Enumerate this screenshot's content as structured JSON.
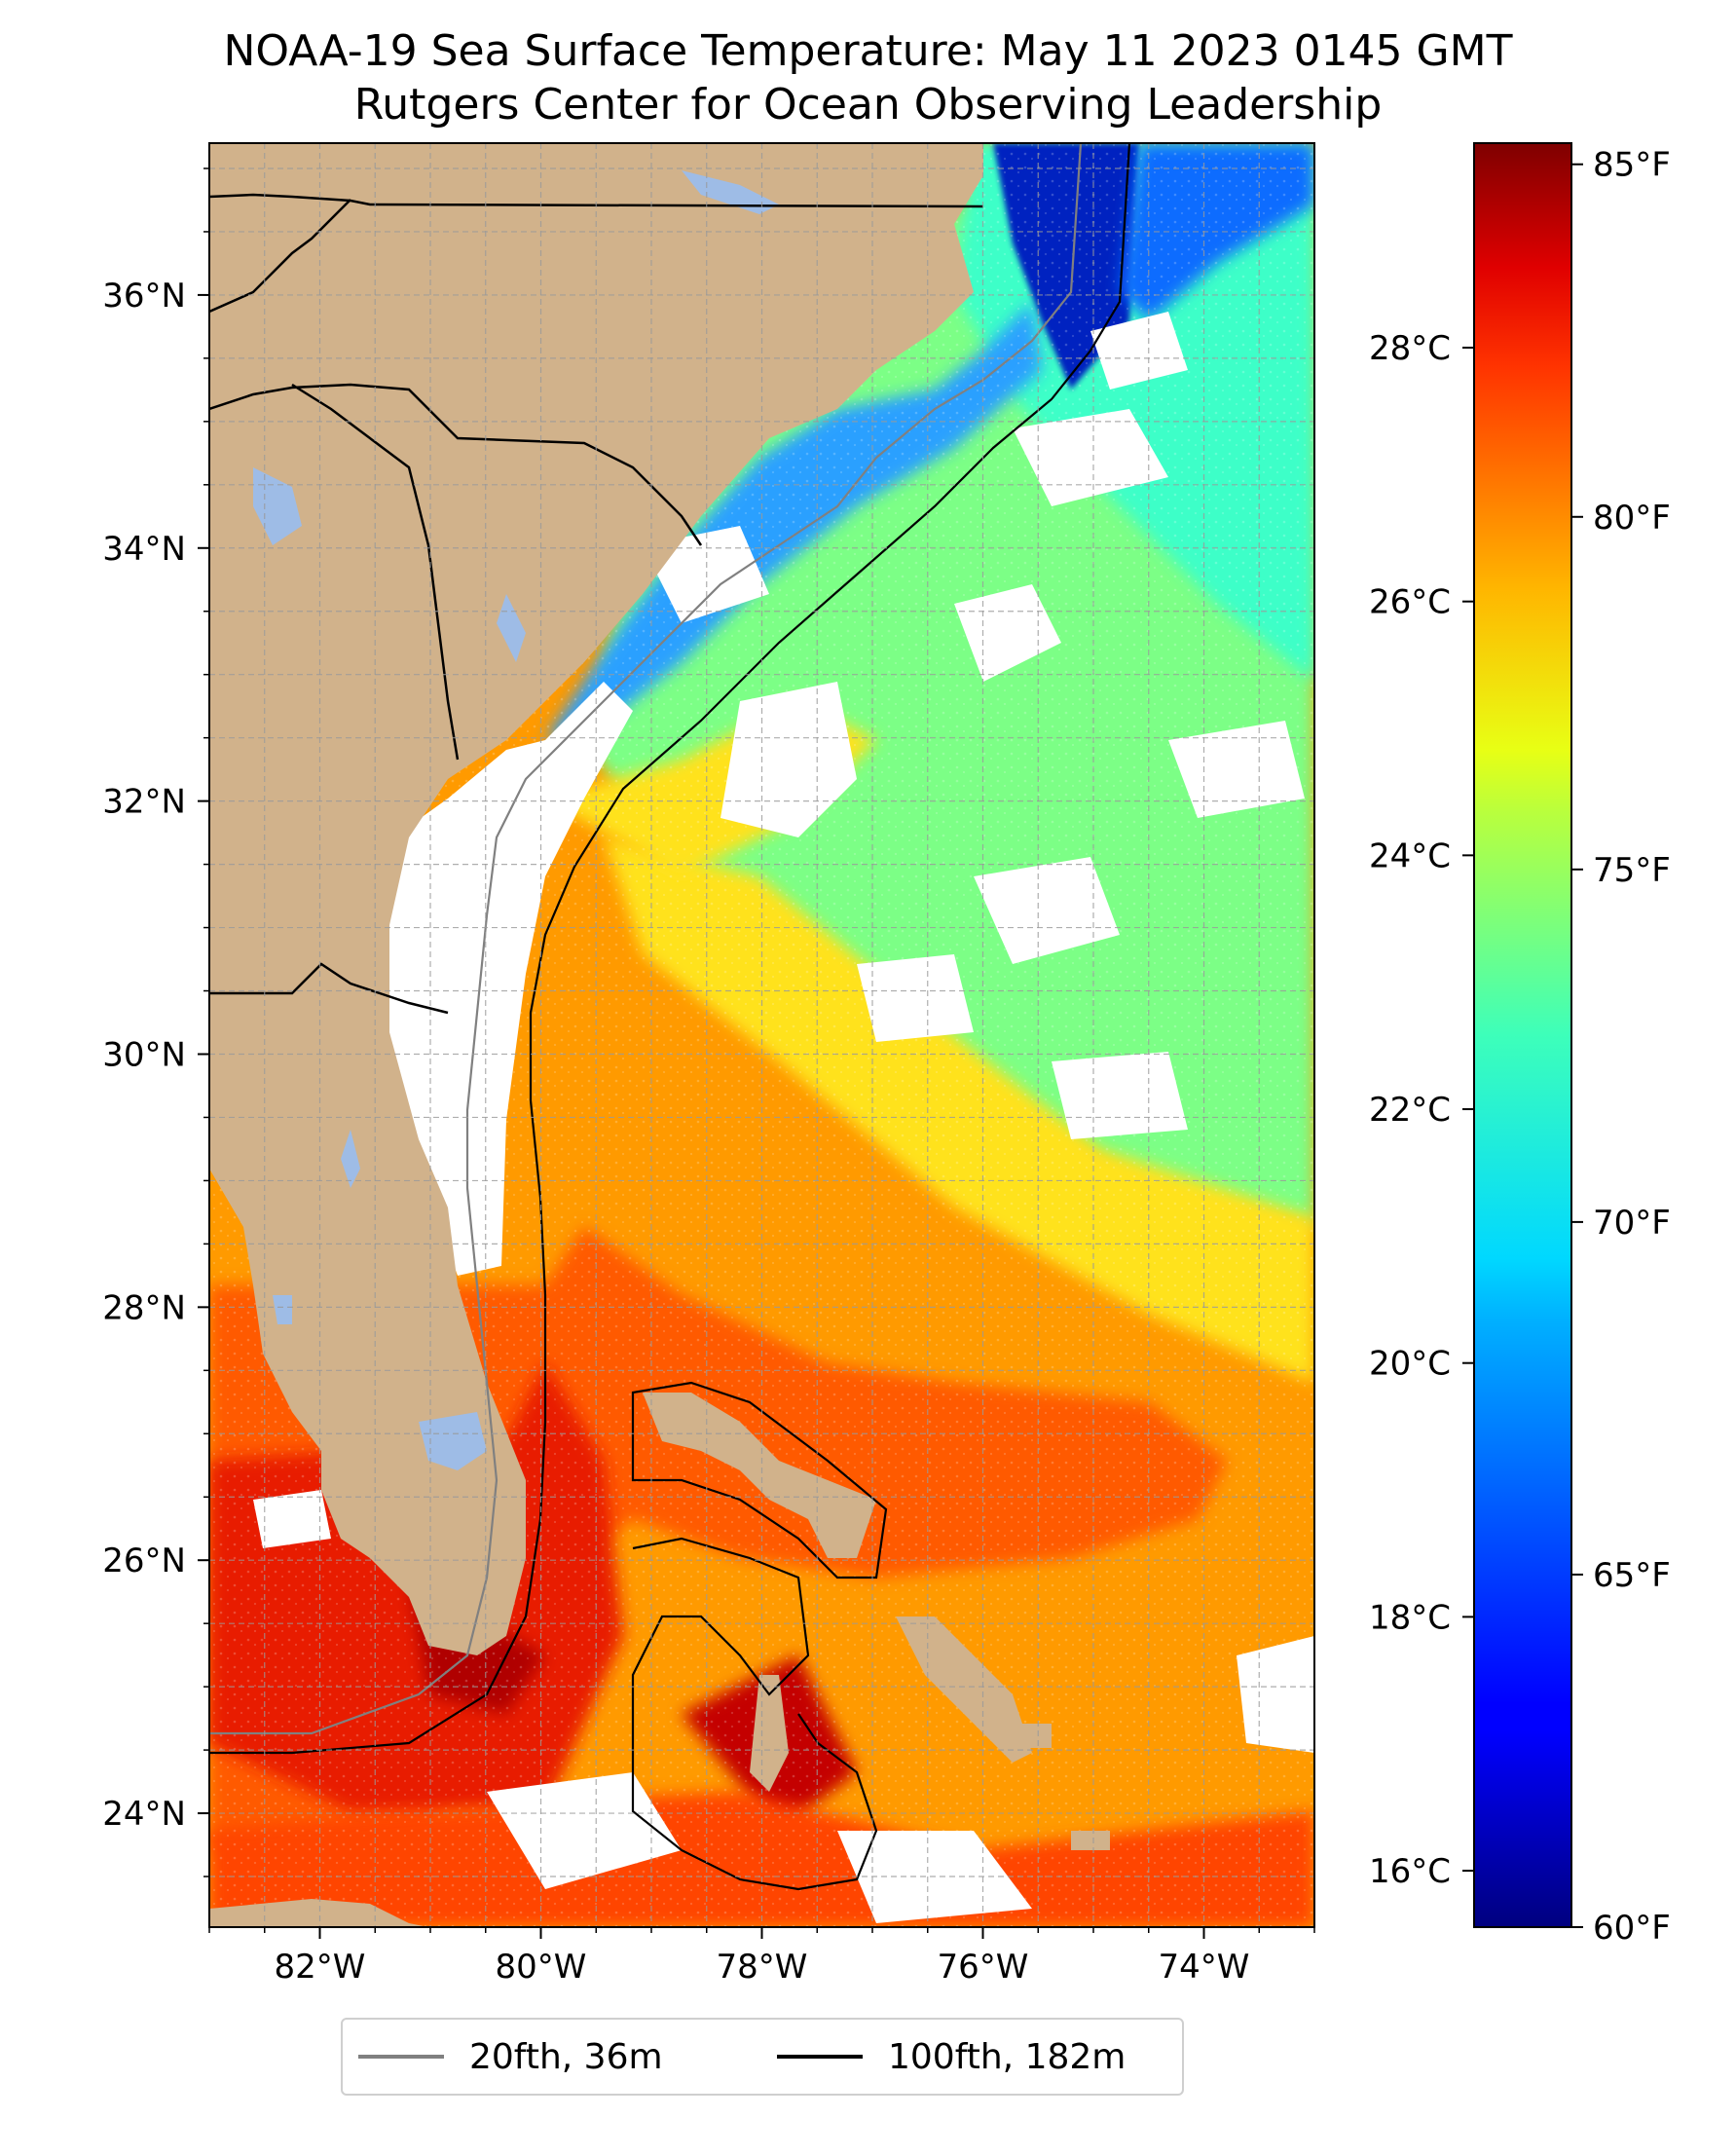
{
  "title": {
    "line1": "NOAA-19 Sea Surface Temperature: May 11 2023 0145 GMT",
    "line2": "Rutgers Center for Ocean Observing Leadership"
  },
  "map": {
    "lon_range": [
      -83.0,
      -73.0
    ],
    "lat_range": [
      23.1,
      37.2
    ],
    "lon_ticks": [
      {
        "value": -82,
        "label": "82°W"
      },
      {
        "value": -80,
        "label": "80°W"
      },
      {
        "value": -78,
        "label": "78°W"
      },
      {
        "value": -76,
        "label": "76°W"
      },
      {
        "value": -74,
        "label": "74°W"
      }
    ],
    "lat_ticks": [
      {
        "value": 24,
        "label": "24°N"
      },
      {
        "value": 26,
        "label": "26°N"
      },
      {
        "value": 28,
        "label": "28°N"
      },
      {
        "value": 30,
        "label": "30°N"
      },
      {
        "value": 32,
        "label": "32°N"
      },
      {
        "value": 34,
        "label": "34°N"
      },
      {
        "value": 36,
        "label": "36°N"
      }
    ],
    "grid": "dashed, every 0.5°",
    "colors": {
      "land": "#d1b28b",
      "lakes": "#9ebce6",
      "cloud_mask": "#ffffff",
      "isobath_20fth": "#808080",
      "isobath_100fth": "#000000",
      "borders": "#000000"
    }
  },
  "colorbar": {
    "colormap": "jet",
    "range_f": [
      60,
      85.3
    ],
    "fahrenheit_ticks": [
      {
        "value": 60,
        "label": "60°F"
      },
      {
        "value": 65,
        "label": "65°F"
      },
      {
        "value": 70,
        "label": "70°F"
      },
      {
        "value": 75,
        "label": "75°F"
      },
      {
        "value": 80,
        "label": "80°F"
      },
      {
        "value": 85,
        "label": "85°F"
      }
    ],
    "celsius_ticks": [
      {
        "value": 16,
        "label": "16°C"
      },
      {
        "value": 18,
        "label": "18°C"
      },
      {
        "value": 20,
        "label": "20°C"
      },
      {
        "value": 22,
        "label": "22°C"
      },
      {
        "value": 24,
        "label": "24°C"
      },
      {
        "value": 26,
        "label": "26°C"
      },
      {
        "value": 28,
        "label": "28°C"
      }
    ]
  },
  "legend": {
    "placement": "bottom-center",
    "entries": [
      {
        "label": "20fth, 36m",
        "color": "#808080"
      },
      {
        "label": "100fth, 182m",
        "color": "#000000"
      }
    ]
  }
}
